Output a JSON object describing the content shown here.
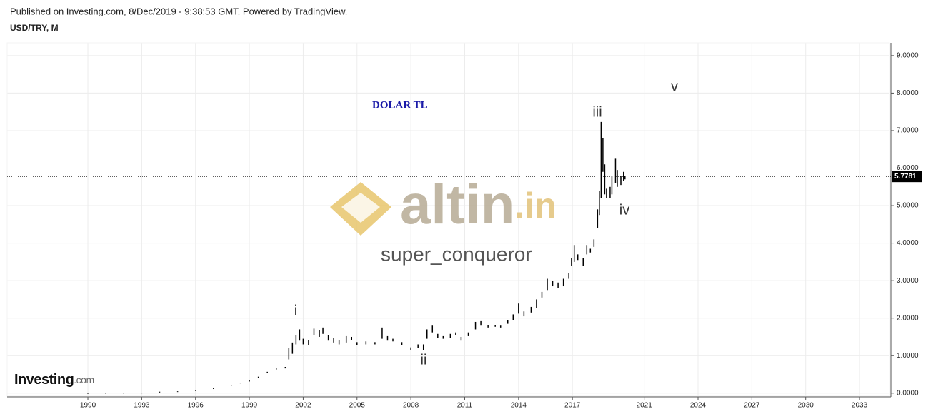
{
  "header": {
    "published": "Published on Investing.com, 8/Dec/2019 - 9:38:53 GMT, Powered by TradingView.",
    "symbol": "USD/TRY, M"
  },
  "chart_data": {
    "type": "ohlc-range",
    "title": "DOLAR TL",
    "annotations": [
      "i",
      "ii",
      "iii",
      "iv",
      "v"
    ],
    "watermark": {
      "brand": "altin",
      "suffix": ".in",
      "author": "super_conqueror"
    },
    "logo": {
      "brand": "Investing",
      "suffix": ".com"
    },
    "last_price": 5.7781,
    "x": [
      1990.0,
      1991.0,
      1992.0,
      1993.0,
      1994.0,
      1995.0,
      1996.0,
      1997.0,
      1998.0,
      1998.5,
      1999.0,
      1999.5,
      2000.0,
      2000.5,
      2001.0,
      2001.2,
      2001.4,
      2001.6,
      2001.8,
      2002.0,
      2002.3,
      2002.6,
      2002.9,
      2003.1,
      2003.4,
      2003.7,
      2004.0,
      2004.4,
      2004.7,
      2005.0,
      2005.5,
      2006.0,
      2006.4,
      2006.7,
      2007.0,
      2007.5,
      2008.0,
      2008.4,
      2008.7,
      2008.9,
      2009.2,
      2009.5,
      2009.8,
      2010.2,
      2010.5,
      2010.8,
      2011.2,
      2011.6,
      2011.9,
      2012.3,
      2012.7,
      2013.0,
      2013.4,
      2013.7,
      2014.0,
      2014.3,
      2014.7,
      2015.0,
      2015.3,
      2015.6,
      2015.9,
      2016.2,
      2016.5,
      2016.8,
      2016.95,
      2017.1,
      2017.3,
      2017.6,
      2017.8,
      2018.0,
      2018.2,
      2018.4,
      2018.5,
      2018.6,
      2018.7,
      2018.8,
      2018.9,
      2019.1,
      2019.2,
      2019.4,
      2019.5,
      2019.7,
      2019.85,
      2019.93
    ],
    "series": [
      {
        "name": "High",
        "color": "#000000",
        "values": [
          0.003,
          0.005,
          0.008,
          0.013,
          0.04,
          0.05,
          0.08,
          0.13,
          0.22,
          0.28,
          0.34,
          0.44,
          0.57,
          0.66,
          0.7,
          1.2,
          1.35,
          1.55,
          1.7,
          1.45,
          1.42,
          1.72,
          1.68,
          1.75,
          1.55,
          1.48,
          1.42,
          1.52,
          1.5,
          1.36,
          1.38,
          1.36,
          1.75,
          1.52,
          1.45,
          1.36,
          1.22,
          1.3,
          1.3,
          1.7,
          1.8,
          1.58,
          1.52,
          1.58,
          1.62,
          1.5,
          1.62,
          1.9,
          1.92,
          1.82,
          1.82,
          1.8,
          1.95,
          2.1,
          2.39,
          2.18,
          2.3,
          2.5,
          2.7,
          3.05,
          3.0,
          2.95,
          3.05,
          3.2,
          3.6,
          3.95,
          3.7,
          3.6,
          3.95,
          3.85,
          4.1,
          4.9,
          5.4,
          7.23,
          6.8,
          6.1,
          5.45,
          5.5,
          5.8,
          6.25,
          5.95,
          5.8,
          5.9,
          5.79
        ]
      },
      {
        "name": "Low",
        "color": "#000000",
        "values": [
          0.002,
          0.004,
          0.006,
          0.01,
          0.018,
          0.038,
          0.06,
          0.11,
          0.2,
          0.26,
          0.31,
          0.41,
          0.54,
          0.63,
          0.66,
          0.9,
          1.05,
          1.3,
          1.4,
          1.3,
          1.28,
          1.55,
          1.5,
          1.58,
          1.4,
          1.35,
          1.3,
          1.35,
          1.42,
          1.28,
          1.3,
          1.3,
          1.45,
          1.4,
          1.38,
          1.28,
          1.15,
          1.2,
          1.15,
          1.45,
          1.62,
          1.48,
          1.45,
          1.48,
          1.55,
          1.4,
          1.52,
          1.7,
          1.8,
          1.75,
          1.77,
          1.75,
          1.85,
          1.95,
          2.12,
          2.05,
          2.15,
          2.28,
          2.55,
          2.75,
          2.85,
          2.8,
          2.85,
          3.05,
          3.4,
          3.5,
          3.55,
          3.4,
          3.7,
          3.75,
          3.9,
          4.4,
          4.75,
          5.2,
          5.9,
          5.3,
          5.2,
          5.2,
          5.3,
          5.6,
          5.5,
          5.55,
          5.65,
          5.7
        ]
      }
    ],
    "xlim": [
      1985.5,
      2034.67
    ],
    "ylim": [
      -0.08,
      9.34
    ],
    "xticks": [
      1990,
      1993,
      1996,
      1999,
      2002,
      2005,
      2008,
      2011,
      2014,
      2017,
      2021,
      2024,
      2027,
      2030,
      2033
    ],
    "yticks": [
      {
        "value": 0,
        "label": "0.0000"
      },
      {
        "value": 1,
        "label": "1.0000"
      },
      {
        "value": 2,
        "label": "2.0000"
      },
      {
        "value": 3,
        "label": "3.0000"
      },
      {
        "value": 4,
        "label": "4.0000"
      },
      {
        "value": 5,
        "label": "5.0000"
      },
      {
        "value": 6,
        "label": "6.0000"
      },
      {
        "value": 7,
        "label": "7.0000"
      },
      {
        "value": 8,
        "label": "8.0000"
      },
      {
        "value": 9,
        "label": "9.0000"
      }
    ],
    "grid": true
  }
}
